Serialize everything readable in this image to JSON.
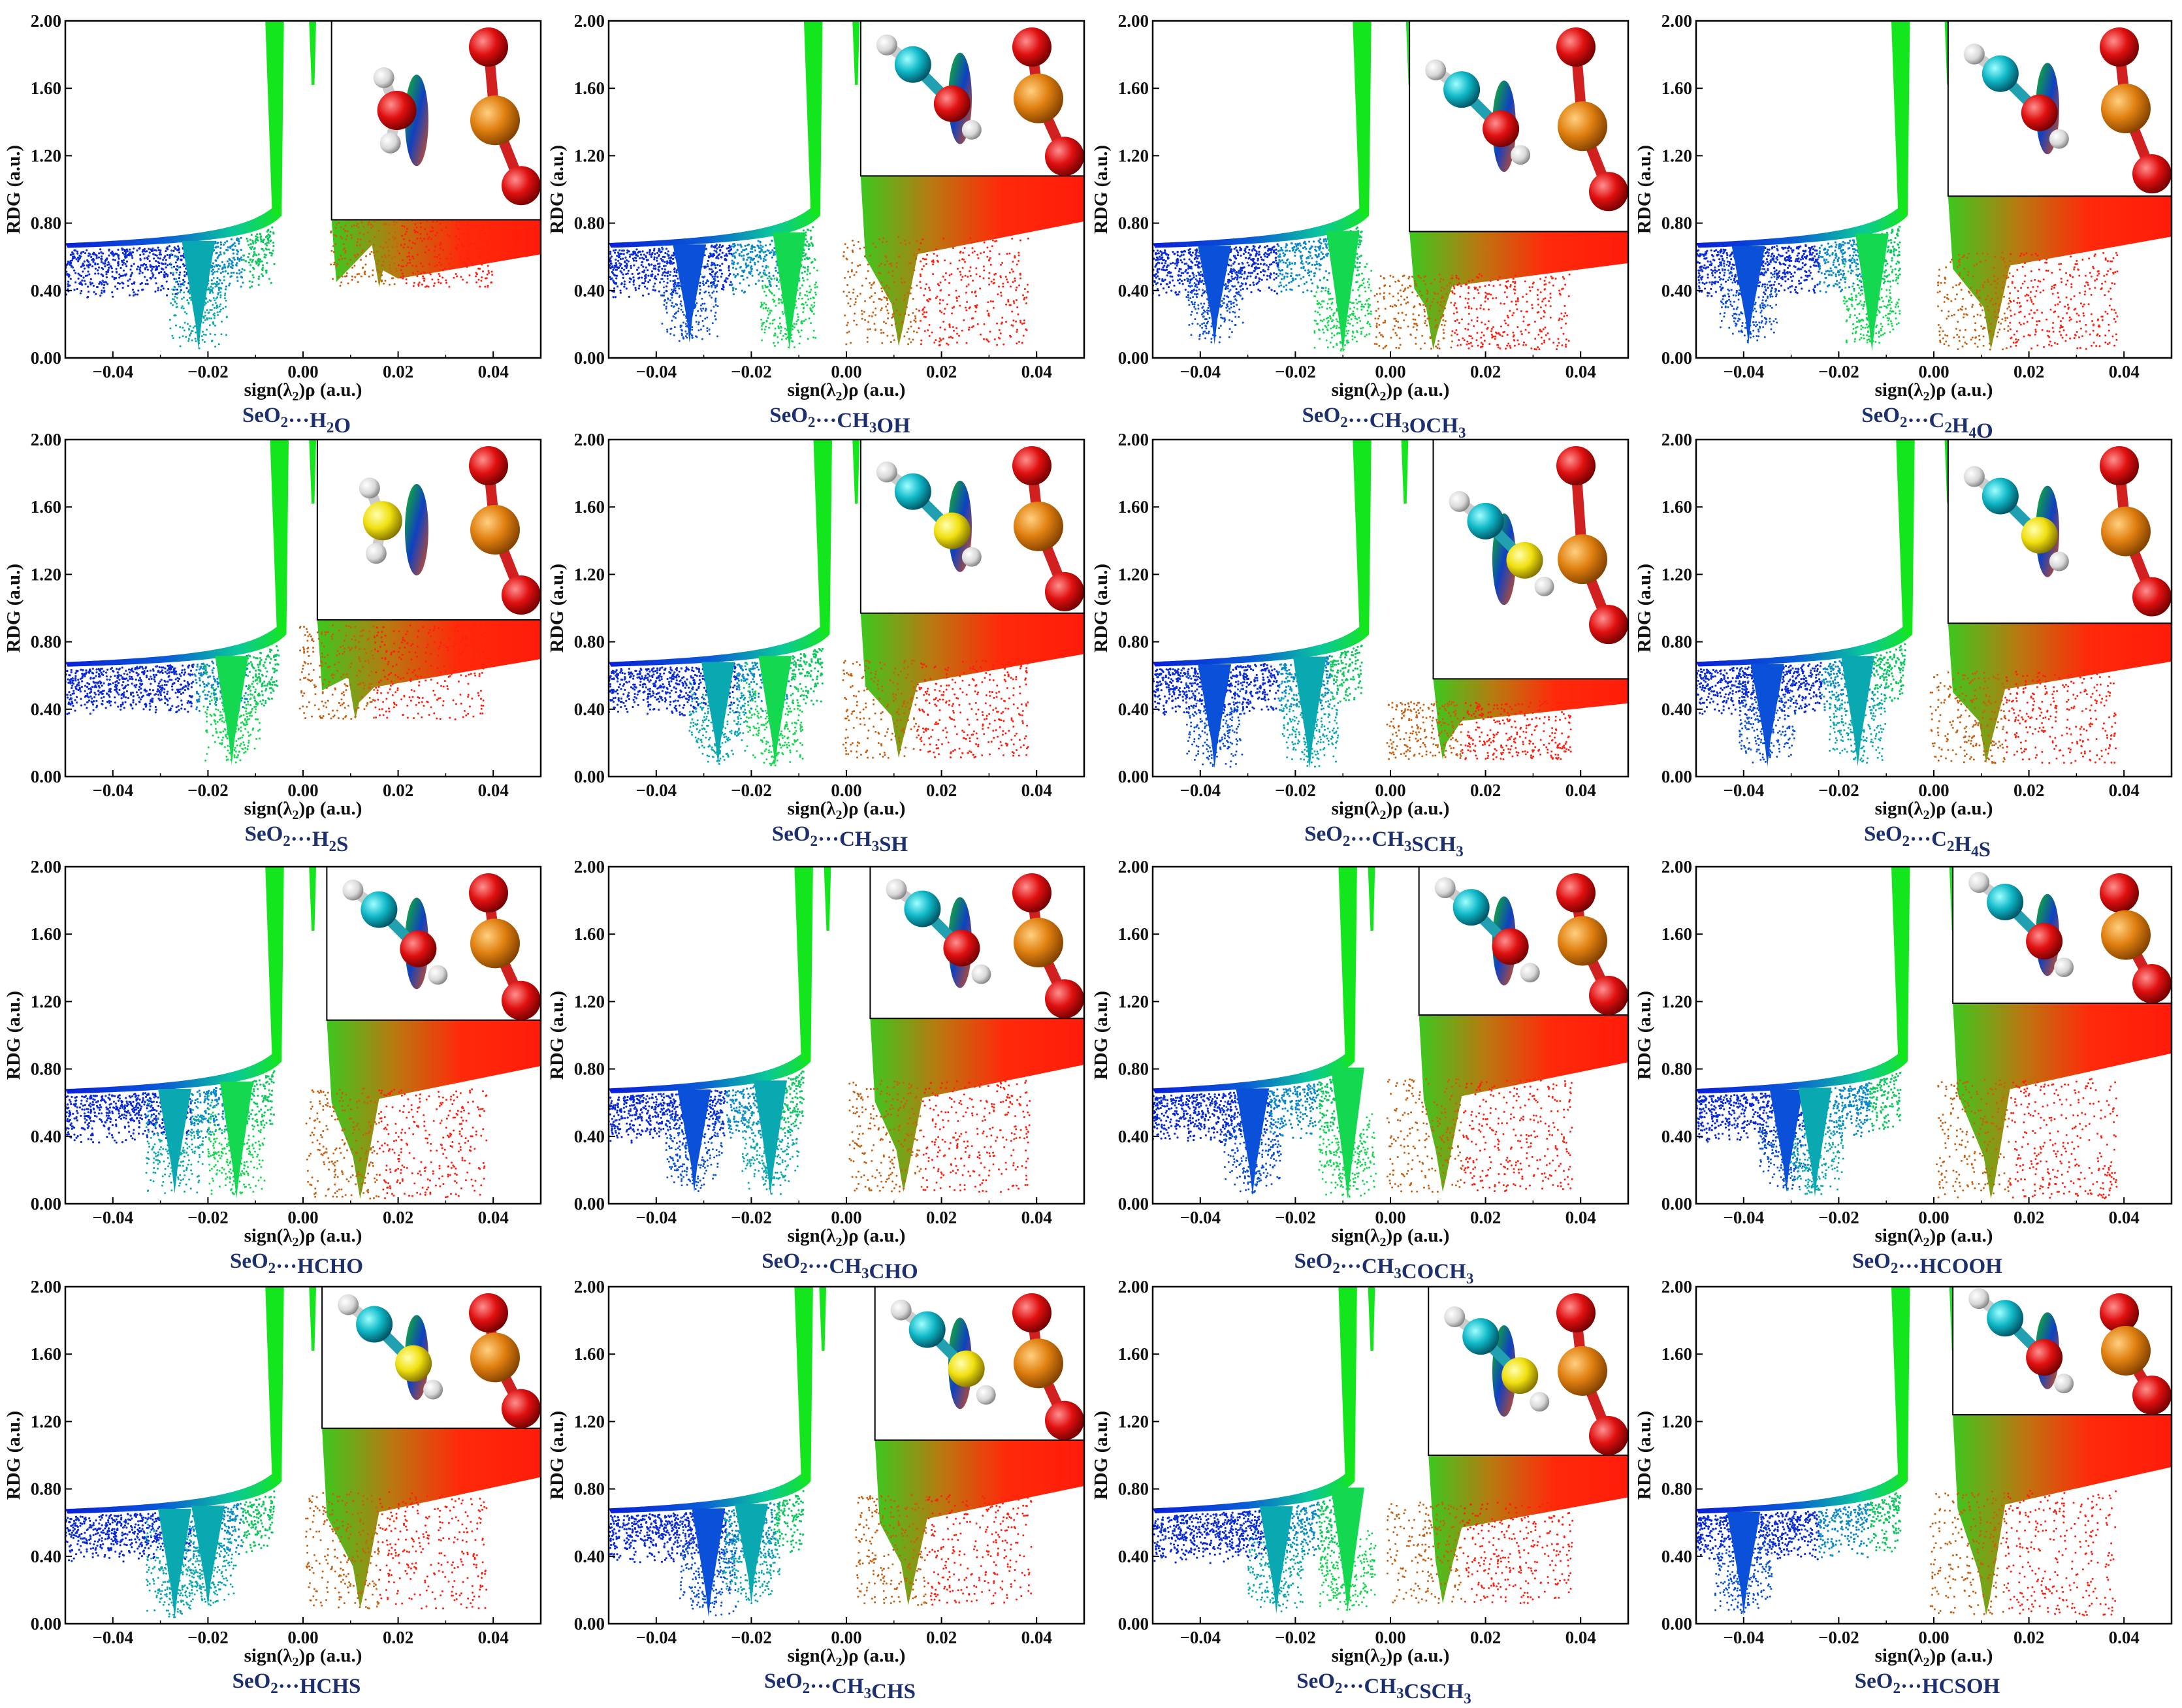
{
  "figure": {
    "x_tick_labels": [
      "-0.04",
      "-0.02",
      "0.00",
      "0.02",
      "0.04"
    ],
    "y_tick_labels": [
      "0.00",
      "0.40",
      "0.80",
      "1.20",
      "1.60",
      "2.00"
    ],
    "colors": {
      "blue": "#0a1ed8",
      "green": "#14e61e",
      "red": "#ff1a0a",
      "caption": "#1c2f6e"
    }
  },
  "chart_data": [
    {
      "type": "scatter",
      "caption_prefix": "SeO",
      "caption_sub": "2",
      "caption_mid": "···H",
      "caption_parts": [
        [
          "H",
          "2"
        ],
        [
          "O",
          ""
        ]
      ],
      "caption": "SeO2···H2O",
      "xlabel": "sign(λ2)ρ (a.u.)",
      "ylabel": "RDG (a.u.)",
      "xlim": [
        -0.05,
        0.05
      ],
      "ylim": [
        0,
        2
      ],
      "spikes": [
        {
          "x": -0.022,
          "min_rdg": 0.05
        }
      ],
      "central_spike_x": 0.002,
      "attractive_spike_x": -0.006,
      "repulsive": {
        "x": 0.016,
        "min_rdg": 0.42
      },
      "inset_rdg": 0.82,
      "inset_start_x": 0.006,
      "molecules": [
        "H2O",
        "SeO2"
      ]
    },
    {
      "type": "scatter",
      "caption": "SeO2···CH3OH",
      "caption_parts": [
        [
          "CH",
          "3"
        ],
        [
          "OH",
          ""
        ]
      ],
      "xlabel": "sign(λ2)ρ (a.u.)",
      "ylabel": "RDG (a.u.)",
      "xlim": [
        -0.05,
        0.05
      ],
      "ylim": [
        0,
        2
      ],
      "spikes": [
        {
          "x": -0.033,
          "min_rdg": 0.09
        },
        {
          "x": -0.012,
          "min_rdg": 0.05
        }
      ],
      "central_spike_x": 0.002,
      "attractive_spike_x": -0.007,
      "repulsive": {
        "x": 0.011,
        "min_rdg": 0.07
      },
      "inset_rdg": 1.08,
      "inset_start_x": 0.003,
      "molecules": [
        "CH3OH",
        "SeO2"
      ]
    },
    {
      "type": "scatter",
      "caption": "SeO2···CH3OCH3",
      "caption_parts": [
        [
          "CH",
          "3"
        ],
        [
          "OCH",
          "3"
        ]
      ],
      "xlabel": "sign(λ2)ρ (a.u.)",
      "ylabel": "RDG (a.u.)",
      "xlim": [
        -0.05,
        0.05
      ],
      "ylim": [
        0,
        2
      ],
      "spikes": [
        {
          "x": -0.037,
          "min_rdg": 0.08
        },
        {
          "x": -0.01,
          "min_rdg": 0.03
        }
      ],
      "central_spike_x": 0.004,
      "attractive_spike_x": -0.006,
      "repulsive": {
        "x": 0.009,
        "min_rdg": 0.05
      },
      "inset_rdg": 0.75,
      "inset_start_x": 0.004,
      "molecules": [
        "CH3OCH3",
        "SeO2"
      ]
    },
    {
      "type": "scatter",
      "caption": "SeO2···C2H4O",
      "caption_parts": [
        [
          "C",
          "2"
        ],
        [
          "H",
          "4"
        ],
        [
          "O",
          ""
        ]
      ],
      "xlabel": "sign(λ2)ρ (a.u.)",
      "ylabel": "RDG (a.u.)",
      "xlim": [
        -0.05,
        0.05
      ],
      "ylim": [
        0,
        2
      ],
      "spikes": [
        {
          "x": -0.039,
          "min_rdg": 0.08
        },
        {
          "x": -0.013,
          "min_rdg": 0.04
        }
      ],
      "central_spike_x": 0.003,
      "attractive_spike_x": -0.007,
      "repulsive": {
        "x": 0.012,
        "min_rdg": 0.05
      },
      "inset_rdg": 0.96,
      "inset_start_x": 0.003,
      "molecules": [
        "C2H4O",
        "SeO2"
      ]
    },
    {
      "type": "scatter",
      "caption": "SeO2···H2S",
      "caption_parts": [
        [
          "H",
          "2"
        ],
        [
          "S",
          ""
        ]
      ],
      "xlabel": "sign(λ2)ρ (a.u.)",
      "ylabel": "RDG (a.u.)",
      "xlim": [
        -0.05,
        0.05
      ],
      "ylim": [
        0,
        2
      ],
      "spikes": [
        {
          "x": -0.015,
          "min_rdg": 0.07
        }
      ],
      "central_spike_x": 0.002,
      "attractive_spike_x": -0.005,
      "repulsive": {
        "x": 0.011,
        "min_rdg": 0.34
      },
      "inset_rdg": 0.93,
      "inset_start_x": 0.003,
      "molecules": [
        "H2S",
        "SeO2"
      ]
    },
    {
      "type": "scatter",
      "caption": "SeO2···CH3SH",
      "caption_parts": [
        [
          "CH",
          "3"
        ],
        [
          "SH",
          ""
        ]
      ],
      "xlabel": "sign(λ2)ρ (a.u.)",
      "ylabel": "RDG (a.u.)",
      "xlim": [
        -0.05,
        0.05
      ],
      "ylim": [
        0,
        2
      ],
      "spikes": [
        {
          "x": -0.027,
          "min_rdg": 0.07
        },
        {
          "x": -0.015,
          "min_rdg": 0.06
        }
      ],
      "central_spike_x": 0.002,
      "attractive_spike_x": -0.005,
      "repulsive": {
        "x": 0.011,
        "min_rdg": 0.11
      },
      "inset_rdg": 0.97,
      "inset_start_x": 0.003,
      "molecules": [
        "CH3SH",
        "SeO2"
      ]
    },
    {
      "type": "scatter",
      "caption": "SeO2···CH3SCH3",
      "caption_parts": [
        [
          "CH",
          "3"
        ],
        [
          "SCH",
          "3"
        ]
      ],
      "xlabel": "sign(λ2)ρ (a.u.)",
      "ylabel": "RDG (a.u.)",
      "xlim": [
        -0.05,
        0.05
      ],
      "ylim": [
        0,
        2
      ],
      "spikes": [
        {
          "x": -0.037,
          "min_rdg": 0.05
        },
        {
          "x": -0.017,
          "min_rdg": 0.05
        }
      ],
      "central_spike_x": 0.003,
      "attractive_spike_x": -0.006,
      "repulsive": {
        "x": 0.011,
        "min_rdg": 0.1
      },
      "inset_rdg": 0.58,
      "inset_start_x": 0.009,
      "molecules": [
        "CH3SCH3",
        "SeO2"
      ]
    },
    {
      "type": "scatter",
      "caption": "SeO2···C2H4S",
      "caption_parts": [
        [
          "C",
          "2"
        ],
        [
          "H",
          "4"
        ],
        [
          "S",
          ""
        ]
      ],
      "xlabel": "sign(λ2)ρ (a.u.)",
      "ylabel": "RDG (a.u.)",
      "xlim": [
        -0.05,
        0.05
      ],
      "ylim": [
        0,
        2
      ],
      "spikes": [
        {
          "x": -0.035,
          "min_rdg": 0.06
        },
        {
          "x": -0.016,
          "min_rdg": 0.06
        }
      ],
      "central_spike_x": 0.003,
      "attractive_spike_x": -0.006,
      "repulsive": {
        "x": 0.011,
        "min_rdg": 0.08
      },
      "inset_rdg": 0.91,
      "inset_start_x": 0.003,
      "molecules": [
        "C2H4S",
        "SeO2"
      ]
    },
    {
      "type": "scatter",
      "caption": "SeO2···HCHO",
      "caption_parts": [
        [
          "HCHO",
          ""
        ]
      ],
      "xlabel": "sign(λ2)ρ (a.u.)",
      "ylabel": "RDG (a.u.)",
      "xlim": [
        -0.05,
        0.05
      ],
      "ylim": [
        0,
        2
      ],
      "spikes": [
        {
          "x": -0.027,
          "min_rdg": 0.06
        },
        {
          "x": -0.014,
          "min_rdg": 0.03
        }
      ],
      "central_spike_x": 0.002,
      "attractive_spike_x": -0.006,
      "repulsive": {
        "x": 0.012,
        "min_rdg": 0.03
      },
      "inset_rdg": 1.09,
      "inset_start_x": 0.005,
      "molecules": [
        "HCHO",
        "SeO2"
      ]
    },
    {
      "type": "scatter",
      "caption": "SeO2···CH3CHO",
      "caption_parts": [
        [
          "CH",
          "3"
        ],
        [
          "CHO",
          ""
        ]
      ],
      "xlabel": "sign(λ2)ρ (a.u.)",
      "ylabel": "RDG (a.u.)",
      "xlim": [
        -0.05,
        0.05
      ],
      "ylim": [
        0,
        2
      ],
      "spikes": [
        {
          "x": -0.032,
          "min_rdg": 0.07
        },
        {
          "x": -0.016,
          "min_rdg": 0.05
        }
      ],
      "central_spike_x": -0.004,
      "attractive_spike_x": -0.009,
      "repulsive": {
        "x": 0.012,
        "min_rdg": 0.07
      },
      "inset_rdg": 1.1,
      "inset_start_x": 0.005,
      "molecules": [
        "CH3CHO",
        "SeO2"
      ]
    },
    {
      "type": "scatter",
      "caption": "SeO2···CH3COCH3",
      "caption_parts": [
        [
          "CH",
          "3"
        ],
        [
          "COCH",
          "3"
        ]
      ],
      "xlabel": "sign(λ2)ρ (a.u.)",
      "ylabel": "RDG (a.u.)",
      "xlim": [
        -0.05,
        0.05
      ],
      "ylim": [
        0,
        2
      ],
      "spikes": [
        {
          "x": -0.029,
          "min_rdg": 0.05
        },
        {
          "x": -0.009,
          "min_rdg": 0.03
        }
      ],
      "central_spike_x": -0.004,
      "attractive_spike_x": -0.009,
      "repulsive": {
        "x": 0.011,
        "min_rdg": 0.07
      },
      "inset_rdg": 1.12,
      "inset_start_x": 0.006,
      "molecules": [
        "CH3COCH3",
        "SeO2"
      ]
    },
    {
      "type": "scatter",
      "caption": "SeO2···HCOOH",
      "caption_parts": [
        [
          "HCOOH",
          ""
        ]
      ],
      "xlabel": "sign(λ2)ρ (a.u.)",
      "ylabel": "RDG (a.u.)",
      "xlim": [
        -0.05,
        0.05
      ],
      "ylim": [
        0,
        2
      ],
      "spikes": [
        {
          "x": -0.031,
          "min_rdg": 0.07
        },
        {
          "x": -0.025,
          "min_rdg": 0.04
        }
      ],
      "central_spike_x": 0.004,
      "attractive_spike_x": -0.007,
      "repulsive": {
        "x": 0.012,
        "min_rdg": 0.03
      },
      "inset_rdg": 1.19,
      "inset_start_x": 0.004,
      "molecules": [
        "HCOOH",
        "SeO2"
      ]
    },
    {
      "type": "scatter",
      "caption": "SeO2···HCHS",
      "caption_parts": [
        [
          "HCHS",
          ""
        ]
      ],
      "xlabel": "sign(λ2)ρ (a.u.)",
      "ylabel": "RDG (a.u.)",
      "xlim": [
        -0.05,
        0.05
      ],
      "ylim": [
        0,
        2
      ],
      "spikes": [
        {
          "x": -0.027,
          "min_rdg": 0.03
        },
        {
          "x": -0.02,
          "min_rdg": 0.1
        }
      ],
      "central_spike_x": 0.002,
      "attractive_spike_x": -0.006,
      "repulsive": {
        "x": 0.012,
        "min_rdg": 0.09
      },
      "inset_rdg": 1.16,
      "inset_start_x": 0.004,
      "molecules": [
        "HCHS",
        "SeO2"
      ]
    },
    {
      "type": "scatter",
      "caption": "SeO2···CH3CHS",
      "caption_parts": [
        [
          "CH",
          "3"
        ],
        [
          "CHS",
          ""
        ]
      ],
      "xlabel": "sign(λ2)ρ (a.u.)",
      "ylabel": "RDG (a.u.)",
      "xlim": [
        -0.05,
        0.05
      ],
      "ylim": [
        0,
        2
      ],
      "spikes": [
        {
          "x": -0.029,
          "min_rdg": 0.04
        },
        {
          "x": -0.02,
          "min_rdg": 0.12
        }
      ],
      "central_spike_x": -0.005,
      "attractive_spike_x": -0.009,
      "repulsive": {
        "x": 0.013,
        "min_rdg": 0.11
      },
      "inset_rdg": 1.09,
      "inset_start_x": 0.006,
      "molecules": [
        "CH3CHS",
        "SeO2"
      ]
    },
    {
      "type": "scatter",
      "caption": "SeO2···CH3CSCH3",
      "caption_parts": [
        [
          "CH",
          "3"
        ],
        [
          "CSCH",
          "3"
        ]
      ],
      "xlabel": "sign(λ2)ρ (a.u.)",
      "ylabel": "RDG (a.u.)",
      "xlim": [
        -0.05,
        0.05
      ],
      "ylim": [
        0,
        2
      ],
      "spikes": [
        {
          "x": -0.024,
          "min_rdg": 0.06
        },
        {
          "x": -0.009,
          "min_rdg": 0.07
        }
      ],
      "central_spike_x": -0.004,
      "attractive_spike_x": -0.009,
      "repulsive": {
        "x": 0.011,
        "min_rdg": 0.12
      },
      "inset_rdg": 1.0,
      "inset_start_x": 0.008,
      "molecules": [
        "CH3CSCH3",
        "SeO2"
      ]
    },
    {
      "type": "scatter",
      "caption": "SeO2···HCSOH",
      "caption_parts": [
        [
          "HCSOH",
          ""
        ]
      ],
      "xlabel": "sign(λ2)ρ (a.u.)",
      "ylabel": "RDG (a.u.)",
      "xlim": [
        -0.05,
        0.05
      ],
      "ylim": [
        0,
        2
      ],
      "spikes": [
        {
          "x": -0.04,
          "min_rdg": 0.05
        }
      ],
      "central_spike_x": 0.004,
      "attractive_spike_x": -0.007,
      "repulsive": {
        "x": 0.011,
        "min_rdg": 0.05
      },
      "inset_rdg": 1.24,
      "inset_start_x": 0.004,
      "molecules": [
        "HCSOH",
        "SeO2"
      ]
    }
  ]
}
